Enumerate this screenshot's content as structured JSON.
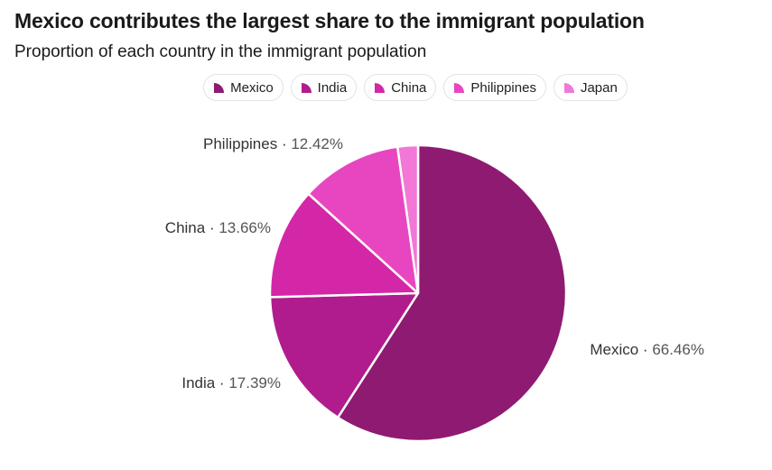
{
  "chart_data": {
    "type": "pie",
    "title": "Mexico contributes the largest share to the immigrant population",
    "subtitle": "Proportion of each country in the immigrant population",
    "legend_position": "top",
    "separator": "·",
    "slices": [
      {
        "name": "Mexico",
        "value": 66.46,
        "value_label": "66.46%",
        "color": "#8f1a71"
      },
      {
        "name": "India",
        "value": 17.39,
        "value_label": "17.39%",
        "color": "#b01c8d"
      },
      {
        "name": "China",
        "value": 13.66,
        "value_label": "13.66%",
        "color": "#d427a8"
      },
      {
        "name": "Philippines",
        "value": 12.42,
        "value_label": "12.42%",
        "color": "#e846c0"
      },
      {
        "name": "Japan",
        "value": 2.5,
        "value_label": "",
        "color": "#f277d6"
      }
    ]
  }
}
